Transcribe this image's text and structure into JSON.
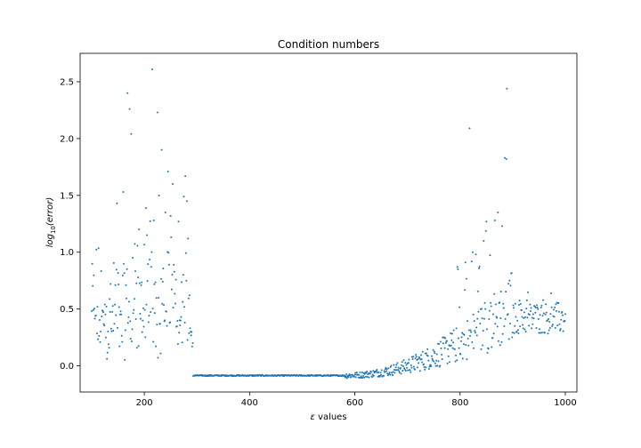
{
  "chart_data": {
    "type": "scatter",
    "title": "Condition numbers",
    "xlabel_symbol": "ε",
    "xlabel_text": " values",
    "ylabel_base": "log",
    "ylabel_sub": "10",
    "ylabel_arg": "(error)",
    "xlim": [
      78,
      1022
    ],
    "ylim": [
      -0.23,
      2.75
    ],
    "x_ticks": [
      200,
      400,
      600,
      800,
      1000
    ],
    "x_tick_labels": [
      "200",
      "400",
      "600",
      "800",
      "1000"
    ],
    "y_ticks": [
      0.0,
      0.5,
      1.0,
      1.5,
      2.0,
      2.5
    ],
    "y_tick_labels": [
      "0.0",
      "0.5",
      "1.0",
      "1.5",
      "2.0",
      "2.5"
    ],
    "grid": false,
    "marker_color": "#1f77b4",
    "x_start": 100,
    "x_step": 1,
    "y": []
  }
}
